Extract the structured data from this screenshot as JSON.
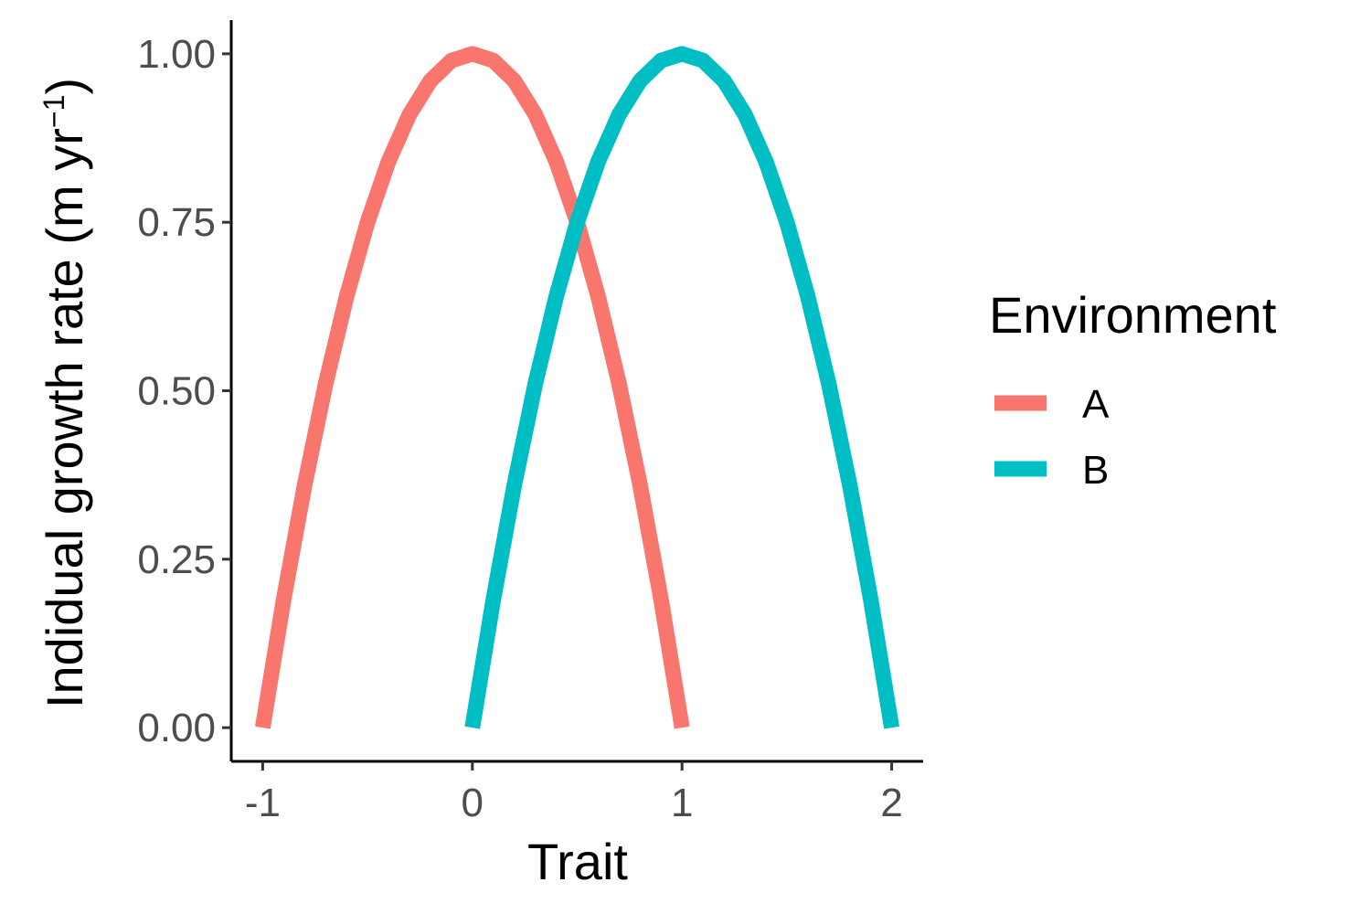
{
  "chart_data": {
    "type": "line",
    "xlabel": "Trait",
    "ylabel": {
      "main": "Indidual growth rate (m yr",
      "sup": "−1",
      "end": ")"
    },
    "xlim": [
      -1.15,
      2.15
    ],
    "ylim": [
      -0.05,
      1.05
    ],
    "x_ticks": [
      -1,
      0,
      1,
      2
    ],
    "x_tick_labels": [
      "-1",
      "0",
      "1",
      "2"
    ],
    "y_ticks": [
      0,
      0.25,
      0.5,
      0.75,
      1.0
    ],
    "y_tick_labels": [
      "0.00",
      "0.25",
      "0.50",
      "0.75",
      "1.00"
    ],
    "grid": false,
    "legend": {
      "title": "Environment",
      "position": "right"
    },
    "series": [
      {
        "name": "A",
        "color": "#F8766D",
        "x": [
          -1.0,
          -0.9,
          -0.8,
          -0.7,
          -0.6,
          -0.5,
          -0.4,
          -0.3,
          -0.2,
          -0.1,
          0.0,
          0.1,
          0.2,
          0.3,
          0.4,
          0.5,
          0.6,
          0.7,
          0.8,
          0.9,
          1.0
        ],
        "y": [
          0.0,
          0.19,
          0.36,
          0.51,
          0.64,
          0.75,
          0.84,
          0.91,
          0.96,
          0.99,
          1.0,
          0.99,
          0.96,
          0.91,
          0.84,
          0.75,
          0.64,
          0.51,
          0.36,
          0.19,
          0.0
        ]
      },
      {
        "name": "B",
        "color": "#00BFC4",
        "x": [
          0.0,
          0.1,
          0.2,
          0.3,
          0.4,
          0.5,
          0.6,
          0.7,
          0.8,
          0.9,
          1.0,
          1.1,
          1.2,
          1.3,
          1.4,
          1.5,
          1.6,
          1.7,
          1.8,
          1.9,
          2.0
        ],
        "y": [
          0.0,
          0.19,
          0.36,
          0.51,
          0.64,
          0.75,
          0.84,
          0.91,
          0.96,
          0.99,
          1.0,
          0.99,
          0.96,
          0.91,
          0.84,
          0.75,
          0.64,
          0.51,
          0.36,
          0.19,
          0.0
        ]
      }
    ]
  }
}
